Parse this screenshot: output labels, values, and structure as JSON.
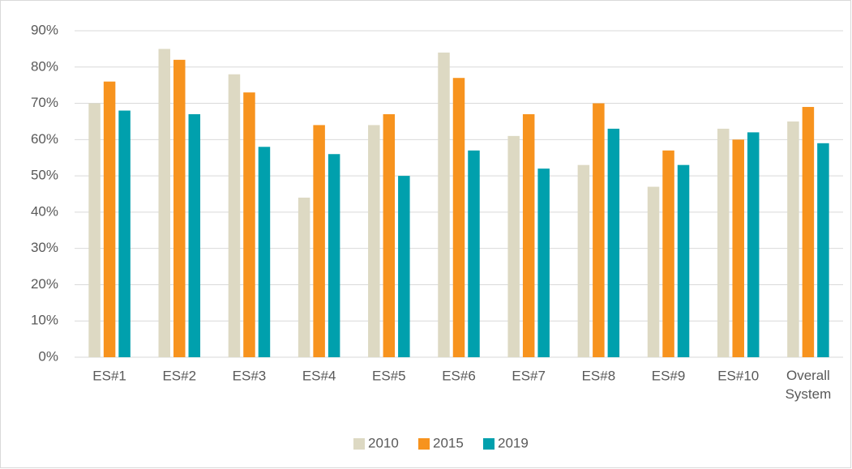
{
  "chart_data": {
    "type": "bar",
    "categories": [
      "ES#1",
      "ES#2",
      "ES#3",
      "ES#4",
      "ES#5",
      "ES#6",
      "ES#7",
      "ES#8",
      "ES#9",
      "ES#10",
      "Overall System"
    ],
    "series": [
      {
        "name": "2010",
        "color": "#ddd9c3",
        "values": [
          70,
          85,
          78,
          44,
          64,
          84,
          61,
          53,
          47,
          63,
          65
        ]
      },
      {
        "name": "2015",
        "color": "#f7931e",
        "values": [
          76,
          82,
          73,
          64,
          67,
          77,
          67,
          70,
          57,
          60,
          69
        ]
      },
      {
        "name": "2019",
        "color": "#00a0ad",
        "values": [
          68,
          67,
          58,
          56,
          50,
          57,
          52,
          63,
          53,
          62,
          59
        ]
      }
    ],
    "ylim": [
      0,
      90
    ],
    "yticks": [
      {
        "value": 0,
        "label": "0%"
      },
      {
        "value": 10,
        "label": "10%"
      },
      {
        "value": 20,
        "label": "20%"
      },
      {
        "value": 30,
        "label": "30%"
      },
      {
        "value": 40,
        "label": "40%"
      },
      {
        "value": 50,
        "label": "50%"
      },
      {
        "value": 60,
        "label": "60%"
      },
      {
        "value": 70,
        "label": "70%"
      },
      {
        "value": 80,
        "label": "80%"
      },
      {
        "value": 90,
        "label": "90%"
      }
    ],
    "grid": true,
    "legend": "bottom"
  }
}
